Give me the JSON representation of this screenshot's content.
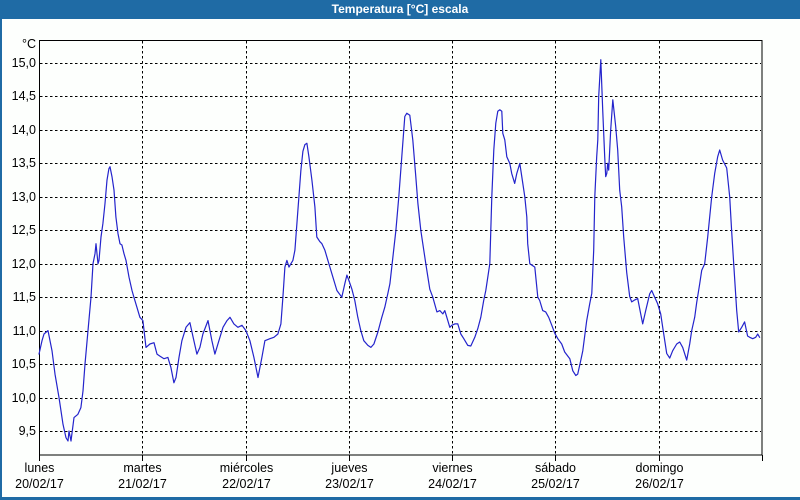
{
  "window": {
    "title": "Temperatura [°C] escala"
  },
  "colors": {
    "titlebar_bg": "#1F6BA5",
    "border": "#1F6BA5",
    "line": "#2424CC",
    "grid": "#000000",
    "frame": "#000000",
    "text": "#000000",
    "background": "#FDFFFD"
  },
  "chart_data": {
    "type": "line",
    "title": "Temperatura [°C] escala",
    "grid": true,
    "legend": "none",
    "y_axis": {
      "unit_label": "°C",
      "min": 9.5,
      "max": 15.0,
      "tick_step": 0.5,
      "tick_labels": [
        "15,0",
        "14,5",
        "14,0",
        "13,5",
        "13,0",
        "12,5",
        "12,0",
        "11,5",
        "11,0",
        "10,5",
        "10,0",
        "9,5"
      ],
      "tick_values": [
        15.0,
        14.5,
        14.0,
        13.5,
        13.0,
        12.5,
        12.0,
        11.5,
        11.0,
        10.5,
        10.0,
        9.5
      ]
    },
    "x_axis": {
      "range_days": 7,
      "days": [
        {
          "name": "lunes",
          "date": "20/02/17"
        },
        {
          "name": "martes",
          "date": "21/02/17"
        },
        {
          "name": "miércoles",
          "date": "22/02/17"
        },
        {
          "name": "jueves",
          "date": "23/02/17"
        },
        {
          "name": "viernes",
          "date": "24/02/17"
        },
        {
          "name": "sábado",
          "date": "25/02/17"
        },
        {
          "name": "domingo",
          "date": "26/02/17"
        }
      ]
    },
    "series": [
      {
        "name": "Temperatura",
        "unit": "°C",
        "x_unit": "days since 20/02/17 00:00",
        "points": [
          [
            0.0,
            10.65
          ],
          [
            0.029,
            10.85
          ],
          [
            0.048,
            10.95
          ],
          [
            0.087,
            11.0
          ],
          [
            0.126,
            10.7
          ],
          [
            0.155,
            10.35
          ],
          [
            0.194,
            10.0
          ],
          [
            0.232,
            9.6
          ],
          [
            0.261,
            9.4
          ],
          [
            0.281,
            9.35
          ],
          [
            0.29,
            9.5
          ],
          [
            0.31,
            9.35
          ],
          [
            0.339,
            9.7
          ],
          [
            0.377,
            9.75
          ],
          [
            0.406,
            9.85
          ],
          [
            0.426,
            10.1
          ],
          [
            0.445,
            10.5
          ],
          [
            0.474,
            11.0
          ],
          [
            0.503,
            11.5
          ],
          [
            0.523,
            12.0
          ],
          [
            0.542,
            12.15
          ],
          [
            0.552,
            12.3
          ],
          [
            0.571,
            12.0
          ],
          [
            0.581,
            12.05
          ],
          [
            0.6,
            12.4
          ],
          [
            0.619,
            12.6
          ],
          [
            0.639,
            12.9
          ],
          [
            0.658,
            13.25
          ],
          [
            0.677,
            13.42
          ],
          [
            0.687,
            13.45
          ],
          [
            0.707,
            13.3
          ],
          [
            0.726,
            13.1
          ],
          [
            0.745,
            12.7
          ],
          [
            0.765,
            12.45
          ],
          [
            0.784,
            12.3
          ],
          [
            0.803,
            12.28
          ],
          [
            0.823,
            12.15
          ],
          [
            0.842,
            12.05
          ],
          [
            0.871,
            11.8
          ],
          [
            0.9,
            11.6
          ],
          [
            0.919,
            11.5
          ],
          [
            0.948,
            11.35
          ],
          [
            0.977,
            11.2
          ],
          [
            1.006,
            11.15
          ],
          [
            1.036,
            10.75
          ],
          [
            1.074,
            10.8
          ],
          [
            1.113,
            10.82
          ],
          [
            1.142,
            10.65
          ],
          [
            1.171,
            10.62
          ],
          [
            1.21,
            10.58
          ],
          [
            1.248,
            10.6
          ],
          [
            1.277,
            10.45
          ],
          [
            1.306,
            10.22
          ],
          [
            1.326,
            10.3
          ],
          [
            1.355,
            10.6
          ],
          [
            1.384,
            10.85
          ],
          [
            1.423,
            11.05
          ],
          [
            1.461,
            11.12
          ],
          [
            1.5,
            10.85
          ],
          [
            1.529,
            10.65
          ],
          [
            1.558,
            10.75
          ],
          [
            1.587,
            10.95
          ],
          [
            1.636,
            11.15
          ],
          [
            1.674,
            10.85
          ],
          [
            1.703,
            10.65
          ],
          [
            1.742,
            10.85
          ],
          [
            1.781,
            11.05
          ],
          [
            1.82,
            11.15
          ],
          [
            1.849,
            11.2
          ],
          [
            1.887,
            11.1
          ],
          [
            1.926,
            11.05
          ],
          [
            1.965,
            11.08
          ],
          [
            2.003,
            11.0
          ],
          [
            2.042,
            10.85
          ],
          [
            2.081,
            10.6
          ],
          [
            2.12,
            10.3
          ],
          [
            2.158,
            10.6
          ],
          [
            2.187,
            10.85
          ],
          [
            2.236,
            10.88
          ],
          [
            2.274,
            10.9
          ],
          [
            2.313,
            10.95
          ],
          [
            2.342,
            11.1
          ],
          [
            2.361,
            11.5
          ],
          [
            2.381,
            11.95
          ],
          [
            2.4,
            12.05
          ],
          [
            2.42,
            11.95
          ],
          [
            2.439,
            12.0
          ],
          [
            2.458,
            12.05
          ],
          [
            2.478,
            12.2
          ],
          [
            2.507,
            12.8
          ],
          [
            2.536,
            13.4
          ],
          [
            2.555,
            13.68
          ],
          [
            2.574,
            13.78
          ],
          [
            2.594,
            13.8
          ],
          [
            2.613,
            13.6
          ],
          [
            2.642,
            13.25
          ],
          [
            2.671,
            12.85
          ],
          [
            2.69,
            12.4
          ],
          [
            2.719,
            12.33
          ],
          [
            2.739,
            12.3
          ],
          [
            2.768,
            12.2
          ],
          [
            2.797,
            12.05
          ],
          [
            2.836,
            11.85
          ],
          [
            2.884,
            11.6
          ],
          [
            2.932,
            11.5
          ],
          [
            2.961,
            11.7
          ],
          [
            2.981,
            11.83
          ],
          [
            3.0,
            11.75
          ],
          [
            3.029,
            11.62
          ],
          [
            3.058,
            11.45
          ],
          [
            3.087,
            11.2
          ],
          [
            3.116,
            11.0
          ],
          [
            3.145,
            10.85
          ],
          [
            3.184,
            10.78
          ],
          [
            3.213,
            10.75
          ],
          [
            3.242,
            10.8
          ],
          [
            3.281,
            10.98
          ],
          [
            3.319,
            11.2
          ],
          [
            3.348,
            11.35
          ],
          [
            3.377,
            11.55
          ],
          [
            3.397,
            11.7
          ],
          [
            3.426,
            12.1
          ],
          [
            3.455,
            12.5
          ],
          [
            3.484,
            13.0
          ],
          [
            3.513,
            13.6
          ],
          [
            3.542,
            14.2
          ],
          [
            3.561,
            14.25
          ],
          [
            3.59,
            14.22
          ],
          [
            3.619,
            13.85
          ],
          [
            3.648,
            13.3
          ],
          [
            3.668,
            12.9
          ],
          [
            3.697,
            12.5
          ],
          [
            3.716,
            12.3
          ],
          [
            3.745,
            12.0
          ],
          [
            3.765,
            11.8
          ],
          [
            3.784,
            11.62
          ],
          [
            3.813,
            11.5
          ],
          [
            3.852,
            11.28
          ],
          [
            3.881,
            11.3
          ],
          [
            3.91,
            11.25
          ],
          [
            3.929,
            11.3
          ],
          [
            3.958,
            11.15
          ],
          [
            3.977,
            11.05
          ],
          [
            3.997,
            11.08
          ],
          [
            4.026,
            11.1
          ],
          [
            4.055,
            11.1
          ],
          [
            4.084,
            10.95
          ],
          [
            4.113,
            10.88
          ],
          [
            4.152,
            10.78
          ],
          [
            4.181,
            10.77
          ],
          [
            4.219,
            10.9
          ],
          [
            4.248,
            11.03
          ],
          [
            4.277,
            11.2
          ],
          [
            4.306,
            11.45
          ],
          [
            4.326,
            11.6
          ],
          [
            4.345,
            11.8
          ],
          [
            4.365,
            12.0
          ],
          [
            4.384,
            13.0
          ],
          [
            4.403,
            13.7
          ],
          [
            4.423,
            14.1
          ],
          [
            4.442,
            14.28
          ],
          [
            4.461,
            14.3
          ],
          [
            4.481,
            14.28
          ],
          [
            4.49,
            13.95
          ],
          [
            4.51,
            13.85
          ],
          [
            4.529,
            13.6
          ],
          [
            4.558,
            13.5
          ],
          [
            4.577,
            13.35
          ],
          [
            4.606,
            13.2
          ],
          [
            4.626,
            13.35
          ],
          [
            4.655,
            13.5
          ],
          [
            4.684,
            13.2
          ],
          [
            4.703,
            13.0
          ],
          [
            4.723,
            12.7
          ],
          [
            4.732,
            12.3
          ],
          [
            4.752,
            12.0
          ],
          [
            4.781,
            11.97
          ],
          [
            4.8,
            11.95
          ],
          [
            4.829,
            11.5
          ],
          [
            4.848,
            11.45
          ],
          [
            4.877,
            11.3
          ],
          [
            4.906,
            11.28
          ],
          [
            4.935,
            11.2
          ],
          [
            4.965,
            11.08
          ],
          [
            4.994,
            10.96
          ],
          [
            5.023,
            10.88
          ],
          [
            5.061,
            10.8
          ],
          [
            5.09,
            10.68
          ],
          [
            5.139,
            10.58
          ],
          [
            5.168,
            10.4
          ],
          [
            5.197,
            10.33
          ],
          [
            5.216,
            10.35
          ],
          [
            5.245,
            10.55
          ],
          [
            5.265,
            10.7
          ],
          [
            5.303,
            11.15
          ],
          [
            5.332,
            11.4
          ],
          [
            5.352,
            11.56
          ],
          [
            5.371,
            12.2
          ],
          [
            5.381,
            13.0
          ],
          [
            5.4,
            13.6
          ],
          [
            5.41,
            13.85
          ],
          [
            5.419,
            14.5
          ],
          [
            5.439,
            15.05
          ],
          [
            5.458,
            14.3
          ],
          [
            5.477,
            13.6
          ],
          [
            5.487,
            13.3
          ],
          [
            5.497,
            13.35
          ],
          [
            5.506,
            13.5
          ],
          [
            5.516,
            13.4
          ],
          [
            5.535,
            14.0
          ],
          [
            5.555,
            14.45
          ],
          [
            5.584,
            14.05
          ],
          [
            5.603,
            13.7
          ],
          [
            5.622,
            13.1
          ],
          [
            5.642,
            12.85
          ],
          [
            5.661,
            12.4
          ],
          [
            5.69,
            11.87
          ],
          [
            5.719,
            11.51
          ],
          [
            5.738,
            11.43
          ],
          [
            5.768,
            11.46
          ],
          [
            5.797,
            11.48
          ],
          [
            5.826,
            11.25
          ],
          [
            5.845,
            11.1
          ],
          [
            5.874,
            11.3
          ],
          [
            5.913,
            11.55
          ],
          [
            5.932,
            11.6
          ],
          [
            5.961,
            11.5
          ],
          [
            5.99,
            11.4
          ],
          [
            6.019,
            11.25
          ],
          [
            6.039,
            11.05
          ],
          [
            6.077,
            10.66
          ],
          [
            6.106,
            10.59
          ],
          [
            6.135,
            10.7
          ],
          [
            6.174,
            10.8
          ],
          [
            6.203,
            10.83
          ],
          [
            6.232,
            10.75
          ],
          [
            6.271,
            10.56
          ],
          [
            6.3,
            10.8
          ],
          [
            6.319,
            11.0
          ],
          [
            6.348,
            11.2
          ],
          [
            6.368,
            11.42
          ],
          [
            6.397,
            11.7
          ],
          [
            6.416,
            11.9
          ],
          [
            6.445,
            12.0
          ],
          [
            6.474,
            12.4
          ],
          [
            6.513,
            13.0
          ],
          [
            6.542,
            13.35
          ],
          [
            6.571,
            13.6
          ],
          [
            6.59,
            13.7
          ],
          [
            6.619,
            13.55
          ],
          [
            6.658,
            13.43
          ],
          [
            6.687,
            13.0
          ],
          [
            6.706,
            12.5
          ],
          [
            6.726,
            12.0
          ],
          [
            6.755,
            11.3
          ],
          [
            6.774,
            10.98
          ],
          [
            6.803,
            11.05
          ],
          [
            6.832,
            11.13
          ],
          [
            6.861,
            10.92
          ],
          [
            6.881,
            10.9
          ],
          [
            6.91,
            10.88
          ],
          [
            6.939,
            10.9
          ],
          [
            6.958,
            10.95
          ],
          [
            6.977,
            10.9
          ]
        ]
      }
    ]
  }
}
